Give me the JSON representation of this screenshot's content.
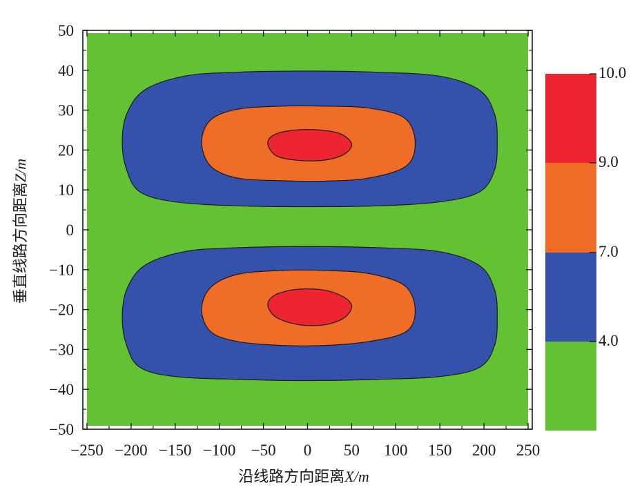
{
  "chart_data": {
    "type": "contour",
    "title": "",
    "xlabel_prefix": "沿线路方向距离",
    "xlabel_var": "X",
    "xlabel_unit": "/m",
    "ylabel_prefix": "垂直线路方向距离",
    "ylabel_var": "Z",
    "ylabel_unit": "/m",
    "xlim": [
      -250,
      250
    ],
    "ylim": [
      -50,
      50
    ],
    "x_ticks": [
      -250,
      -200,
      -150,
      -100,
      -50,
      0,
      50,
      100,
      150,
      200,
      250
    ],
    "y_ticks": [
      -50,
      -40,
      -30,
      -20,
      -10,
      0,
      10,
      20,
      30,
      40,
      50
    ],
    "x_tick_labels": [
      "−250",
      "−200",
      "−150",
      "−100",
      "−50",
      "0",
      "50",
      "100",
      "150",
      "200",
      "250"
    ],
    "y_tick_labels": [
      "−50",
      "−40",
      "−30",
      "−20",
      "−10",
      "0",
      "10",
      "20",
      "30",
      "40",
      "50"
    ],
    "background_level_color": "#62c234",
    "colorbar": {
      "levels": [
        4.0,
        7.0,
        9.0,
        10.0
      ],
      "labels": [
        "4.0",
        "7.0",
        "9.0",
        "10.0"
      ],
      "colors": [
        "#62c234",
        "#3452ab",
        "#f06d27",
        "#ec2530"
      ]
    },
    "regions": [
      {
        "name": "upper",
        "center": [
          0,
          22
        ],
        "contours": [
          {
            "level": 4.0,
            "color": "#3452ab",
            "points": [
              [
                -210,
                22
              ],
              [
                -205,
                29
              ],
              [
                -185,
                35
              ],
              [
                -140,
                38.5
              ],
              [
                -80,
                39.5
              ],
              [
                0,
                39.8
              ],
              [
                80,
                39.5
              ],
              [
                150,
                38.5
              ],
              [
                195,
                35
              ],
              [
                212,
                29
              ],
              [
                215,
                22
              ],
              [
                212,
                15
              ],
              [
                195,
                9.5
              ],
              [
                150,
                7
              ],
              [
                80,
                6
              ],
              [
                0,
                5.8
              ],
              [
                -80,
                6
              ],
              [
                -150,
                7
              ],
              [
                -190,
                9.5
              ],
              [
                -205,
                15
              ]
            ]
          },
          {
            "level": 7.0,
            "color": "#f06d27",
            "points": [
              [
                -120,
                22
              ],
              [
                -110,
                27.5
              ],
              [
                -80,
                30.2
              ],
              [
                -30,
                31
              ],
              [
                20,
                31
              ],
              [
                70,
                30.5
              ],
              [
                110,
                28
              ],
              [
                122,
                22
              ],
              [
                112,
                16
              ],
              [
                70,
                13
              ],
              [
                20,
                12.2
              ],
              [
                -30,
                12.3
              ],
              [
                -80,
                13
              ],
              [
                -110,
                16
              ]
            ]
          },
          {
            "level": 9.0,
            "color": "#ec2530",
            "points": [
              [
                -45,
                21.5
              ],
              [
                -38,
                23.8
              ],
              [
                -15,
                25
              ],
              [
                15,
                25
              ],
              [
                38,
                24
              ],
              [
                50,
                21.5
              ],
              [
                42,
                19
              ],
              [
                20,
                17.5
              ],
              [
                -10,
                17.4
              ],
              [
                -35,
                18.5
              ]
            ]
          }
        ]
      },
      {
        "name": "lower",
        "center": [
          0,
          -20
        ],
        "contours": [
          {
            "level": 4.0,
            "color": "#3452ab",
            "points": [
              [
                -210,
                -22
              ],
              [
                -205,
                -15
              ],
              [
                -185,
                -9
              ],
              [
                -140,
                -5.5
              ],
              [
                -80,
                -4.5
              ],
              [
                0,
                -4.2
              ],
              [
                80,
                -4.5
              ],
              [
                150,
                -5.5
              ],
              [
                195,
                -9
              ],
              [
                212,
                -15
              ],
              [
                215,
                -22
              ],
              [
                212,
                -29
              ],
              [
                195,
                -34.5
              ],
              [
                150,
                -36.8
              ],
              [
                80,
                -37.5
              ],
              [
                0,
                -37.8
              ],
              [
                -80,
                -37.5
              ],
              [
                -150,
                -36.8
              ],
              [
                -190,
                -34.5
              ],
              [
                -205,
                -29
              ]
            ]
          },
          {
            "level": 7.0,
            "color": "#f06d27",
            "points": [
              [
                -120,
                -20
              ],
              [
                -110,
                -14.5
              ],
              [
                -80,
                -11.2
              ],
              [
                -30,
                -10.2
              ],
              [
                20,
                -10.2
              ],
              [
                70,
                -11
              ],
              [
                110,
                -14
              ],
              [
                122,
                -20
              ],
              [
                112,
                -25.5
              ],
              [
                70,
                -28
              ],
              [
                20,
                -29
              ],
              [
                -30,
                -29
              ],
              [
                -80,
                -28
              ],
              [
                -110,
                -25.5
              ]
            ]
          },
          {
            "level": 9.0,
            "color": "#ec2530",
            "points": [
              [
                -45,
                -19
              ],
              [
                -38,
                -16.5
              ],
              [
                -15,
                -15
              ],
              [
                15,
                -15
              ],
              [
                38,
                -16.5
              ],
              [
                50,
                -19
              ],
              [
                42,
                -22
              ],
              [
                20,
                -23.8
              ],
              [
                -10,
                -23.8
              ],
              [
                -35,
                -22
              ]
            ]
          }
        ]
      }
    ]
  }
}
